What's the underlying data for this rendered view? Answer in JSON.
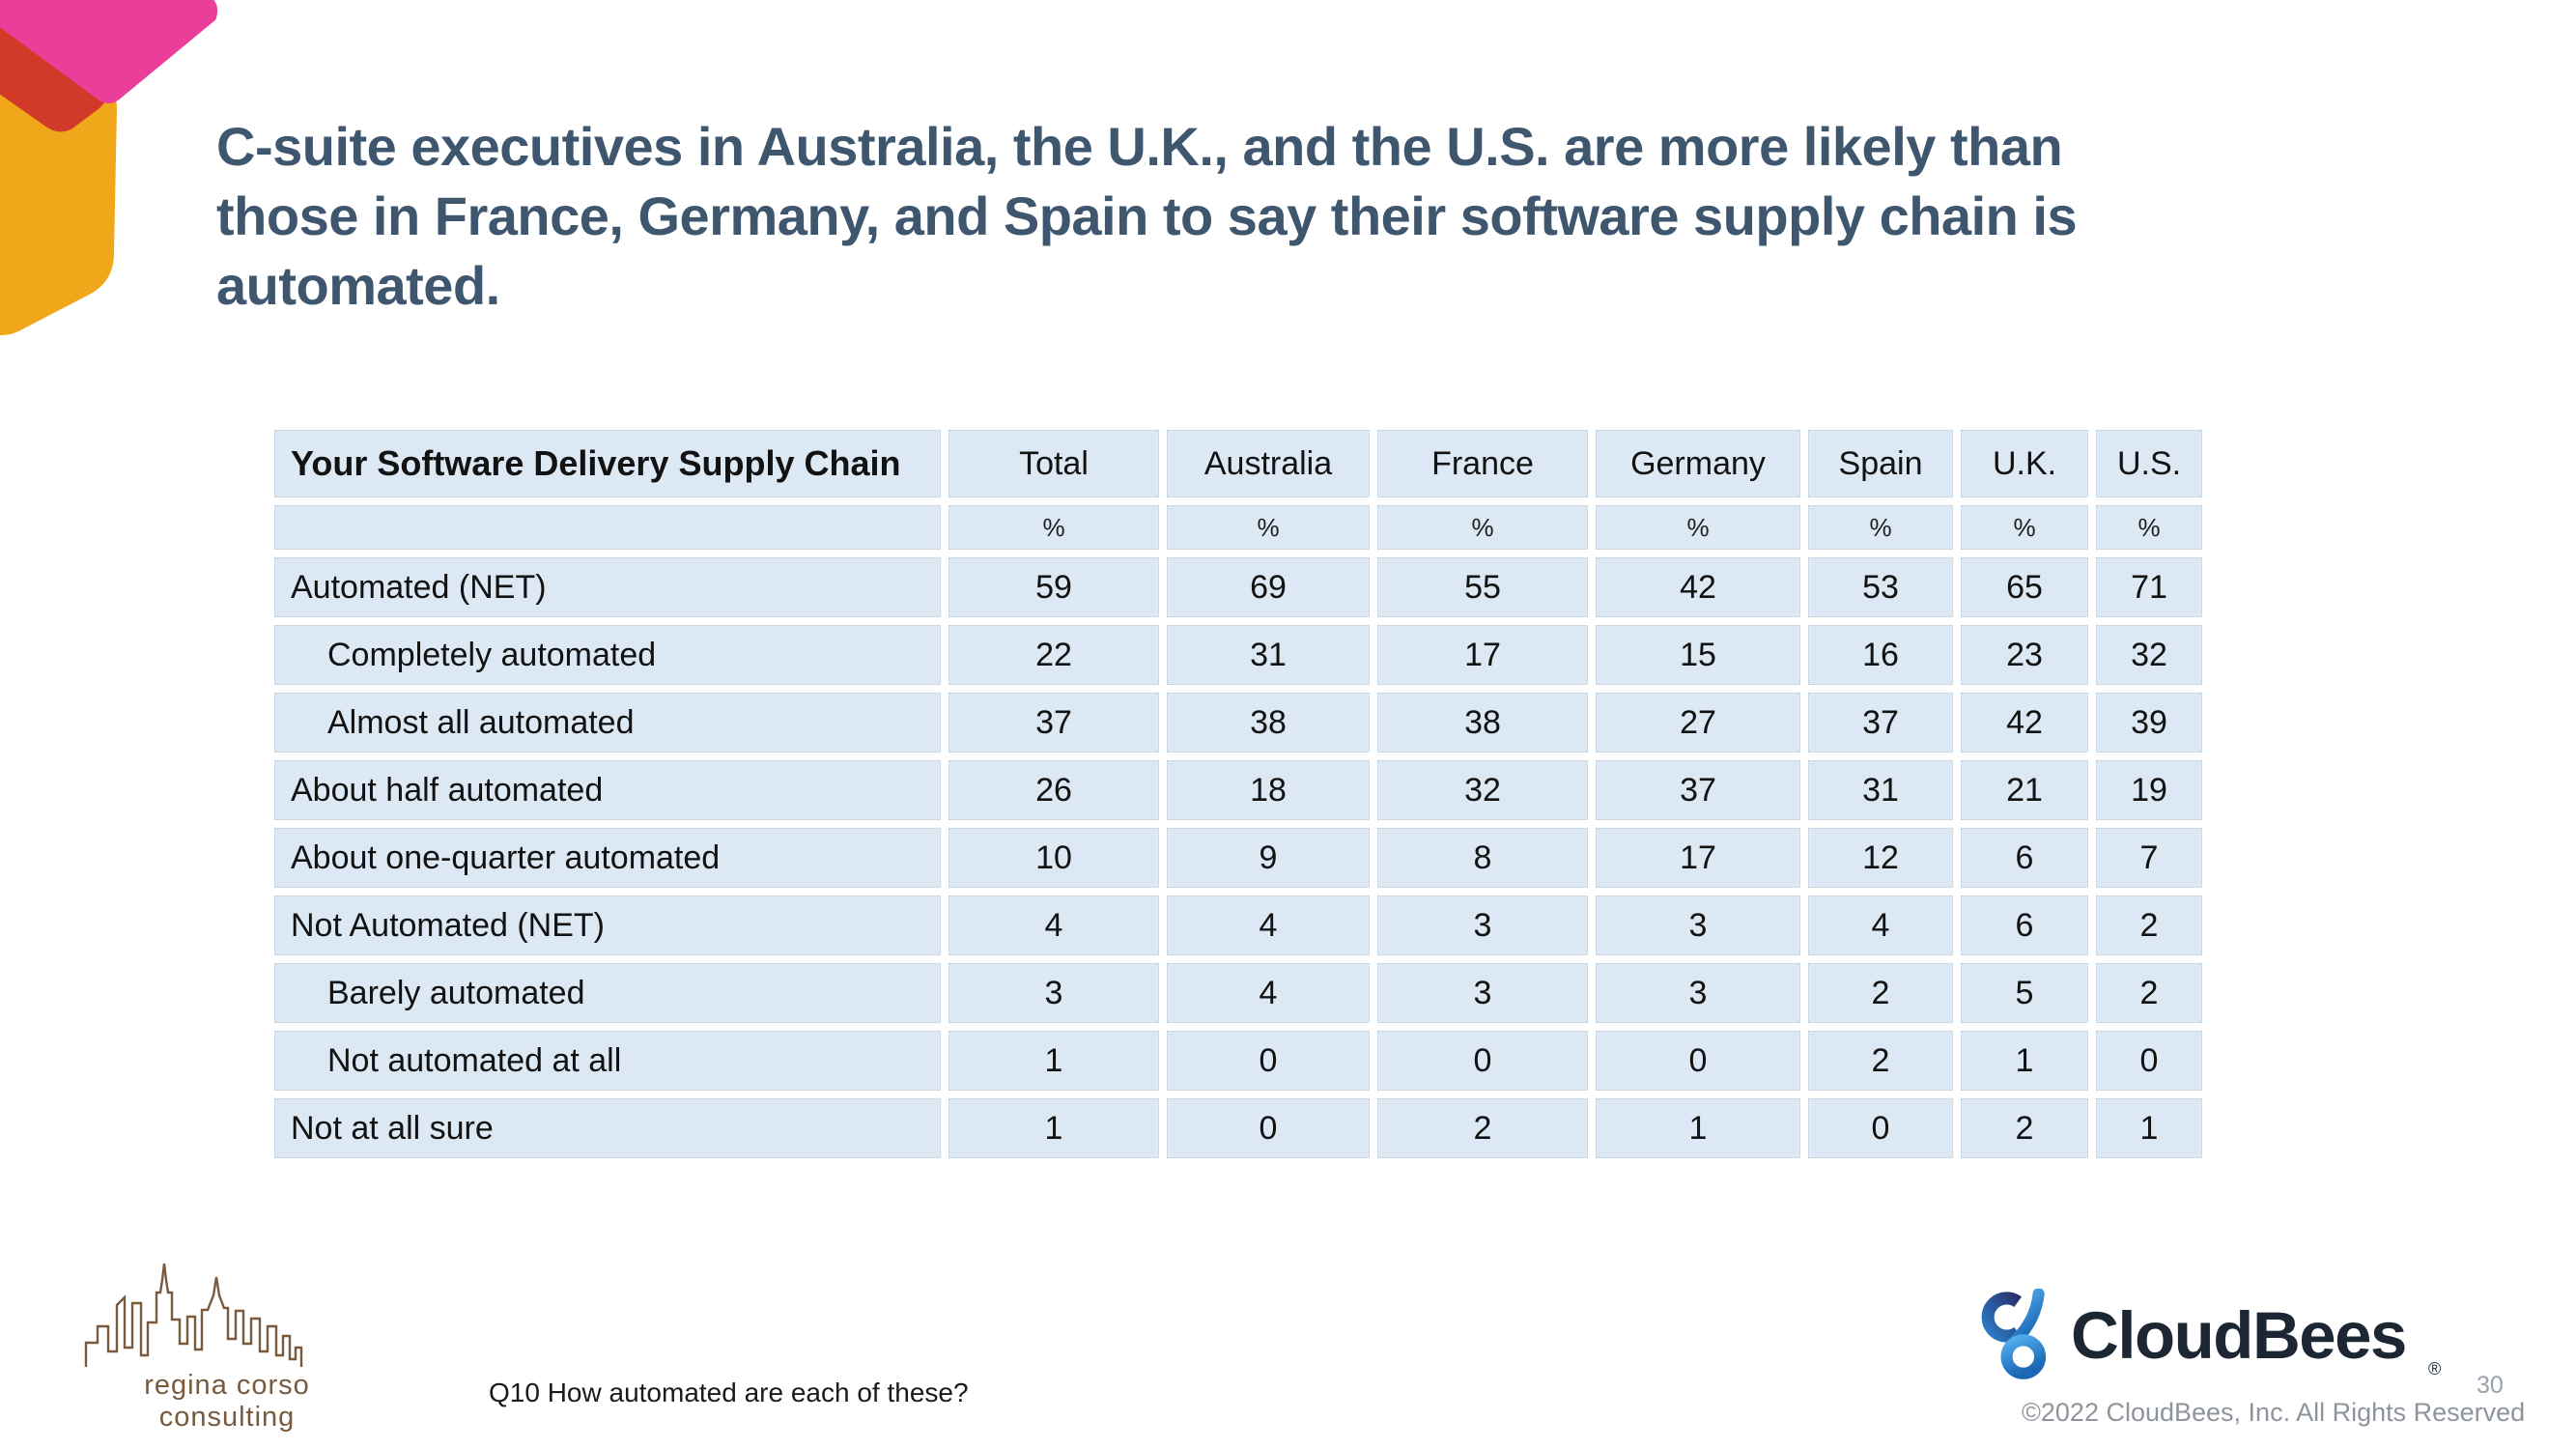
{
  "slide": {
    "title_lines": [
      "C-suite executives in Australia, the U.K., and the U.S. are more likely than",
      "those in France, Germany, and Spain to say their software supply chain is",
      "automated."
    ]
  },
  "chart_data": {
    "type": "table",
    "title": "Your Software Delivery Supply Chain",
    "columns": [
      "Your Software Delivery Supply Chain",
      "Total",
      "Australia",
      "France",
      "Germany",
      "Spain",
      "U.K.",
      "U.S."
    ],
    "unit_row": [
      "",
      "%",
      "%",
      "%",
      "%",
      "%",
      "%",
      "%"
    ],
    "rows": [
      {
        "label": "Automated (NET)",
        "indent": false,
        "values": [
          59,
          69,
          55,
          42,
          53,
          65,
          71
        ]
      },
      {
        "label": "Completely automated",
        "indent": true,
        "values": [
          22,
          31,
          17,
          15,
          16,
          23,
          32
        ]
      },
      {
        "label": "Almost all automated",
        "indent": true,
        "values": [
          37,
          38,
          38,
          27,
          37,
          42,
          39
        ]
      },
      {
        "label": "About half automated",
        "indent": false,
        "values": [
          26,
          18,
          32,
          37,
          31,
          21,
          19
        ]
      },
      {
        "label": "About one-quarter automated",
        "indent": false,
        "values": [
          10,
          9,
          8,
          17,
          12,
          6,
          7
        ]
      },
      {
        "label": "Not Automated (NET)",
        "indent": false,
        "values": [
          4,
          4,
          3,
          3,
          4,
          6,
          2
        ]
      },
      {
        "label": "Barely automated",
        "indent": true,
        "values": [
          3,
          4,
          3,
          3,
          2,
          5,
          2
        ]
      },
      {
        "label": "Not automated at all",
        "indent": true,
        "values": [
          1,
          0,
          0,
          0,
          2,
          1,
          0
        ]
      },
      {
        "label": "Not at all sure",
        "indent": false,
        "values": [
          1,
          0,
          2,
          1,
          0,
          2,
          1
        ]
      }
    ]
  },
  "footer": {
    "question": "Q10 How automated are each of these?",
    "consultant_logo_text": "regina corso consulting",
    "brand_name": "CloudBees",
    "registered_mark": "®",
    "copyright": "©2022 CloudBees, Inc. All Rights Reserved",
    "page_number": "30"
  },
  "colors": {
    "accent_pink": "#ea3e9a",
    "accent_red": "#d13a28",
    "accent_yellow": "#f0a71a",
    "title_text": "#3f566f",
    "table_cell_bg": "#dce8f4",
    "table_text": "#121212",
    "brand_dark": "#1c2733",
    "brand_blue_light": "#52aeee",
    "brand_blue_dark": "#1b66b5",
    "consultant_brown": "#7a5a3d",
    "muted_gray": "#8e949b"
  }
}
